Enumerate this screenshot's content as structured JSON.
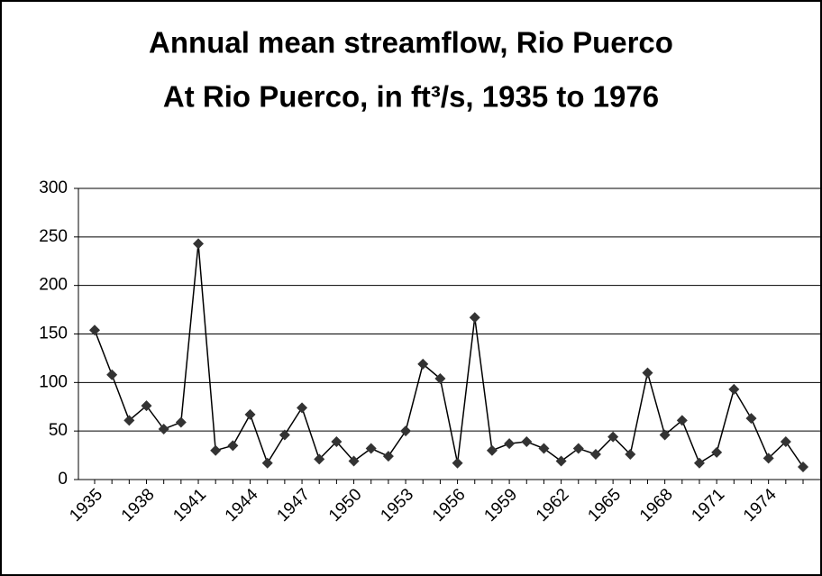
{
  "chart_data": {
    "type": "line",
    "title": [
      "Annual mean streamflow, Rio Puerco",
      "At Rio Puerco, in ft³/s, 1935 to 1976"
    ],
    "categories": [
      "1935",
      null,
      null,
      "1938",
      null,
      null,
      "1941",
      null,
      null,
      "1944",
      null,
      null,
      "1947",
      null,
      null,
      "1950",
      null,
      null,
      "1953",
      null,
      null,
      "1956",
      null,
      null,
      "1959",
      null,
      null,
      "1962",
      null,
      null,
      "1965",
      null,
      null,
      "1968",
      null,
      null,
      "1971",
      null,
      null,
      "1974",
      null,
      null
    ],
    "values": [
      154,
      108,
      61,
      76,
      52,
      59,
      243,
      30,
      35,
      67,
      17,
      46,
      74,
      21,
      39,
      19,
      32,
      24,
      50,
      119,
      104,
      17,
      167,
      30,
      37,
      39,
      32,
      19,
      32,
      26,
      44,
      26,
      110,
      46,
      61,
      17,
      28,
      93,
      63,
      22,
      39,
      13
    ],
    "color": "#000000",
    "marker_color": "#333333",
    "ylim": [
      0,
      300
    ],
    "yticks": [
      0,
      50,
      100,
      150,
      200,
      250,
      300
    ],
    "grid": true
  }
}
